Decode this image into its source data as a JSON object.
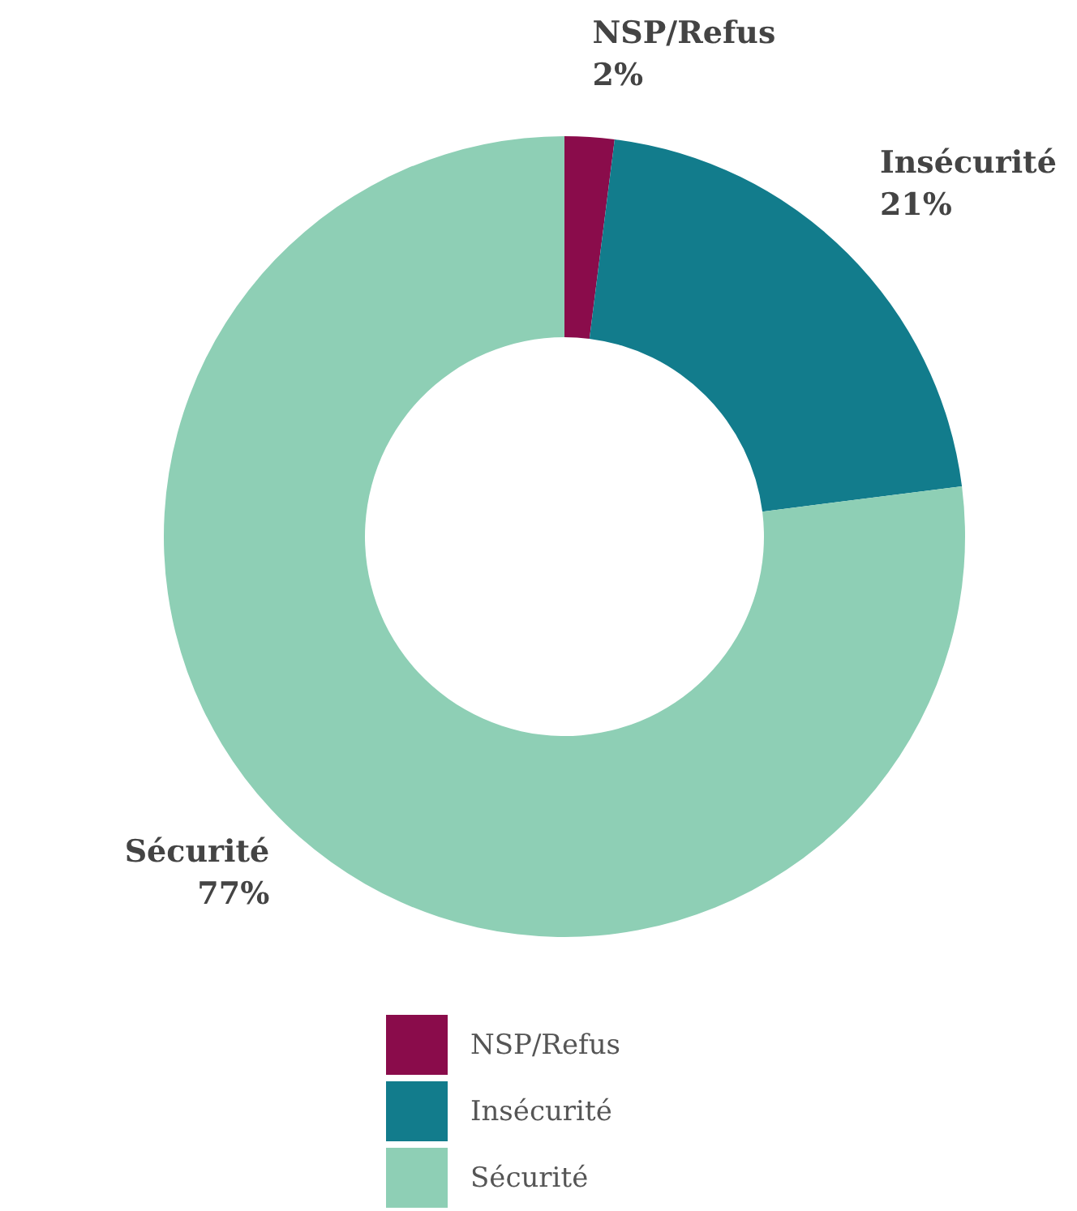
{
  "chart_data": {
    "type": "donut",
    "categories": [
      "NSP/Refus",
      "Insécurité",
      "Sécurité"
    ],
    "values": [
      2,
      21,
      77
    ],
    "colors": [
      "#8a0c4b",
      "#127c8c",
      "#8ecfb5"
    ],
    "value_labels": [
      "2%",
      "21%",
      "77%"
    ],
    "legend": "bottom"
  }
}
